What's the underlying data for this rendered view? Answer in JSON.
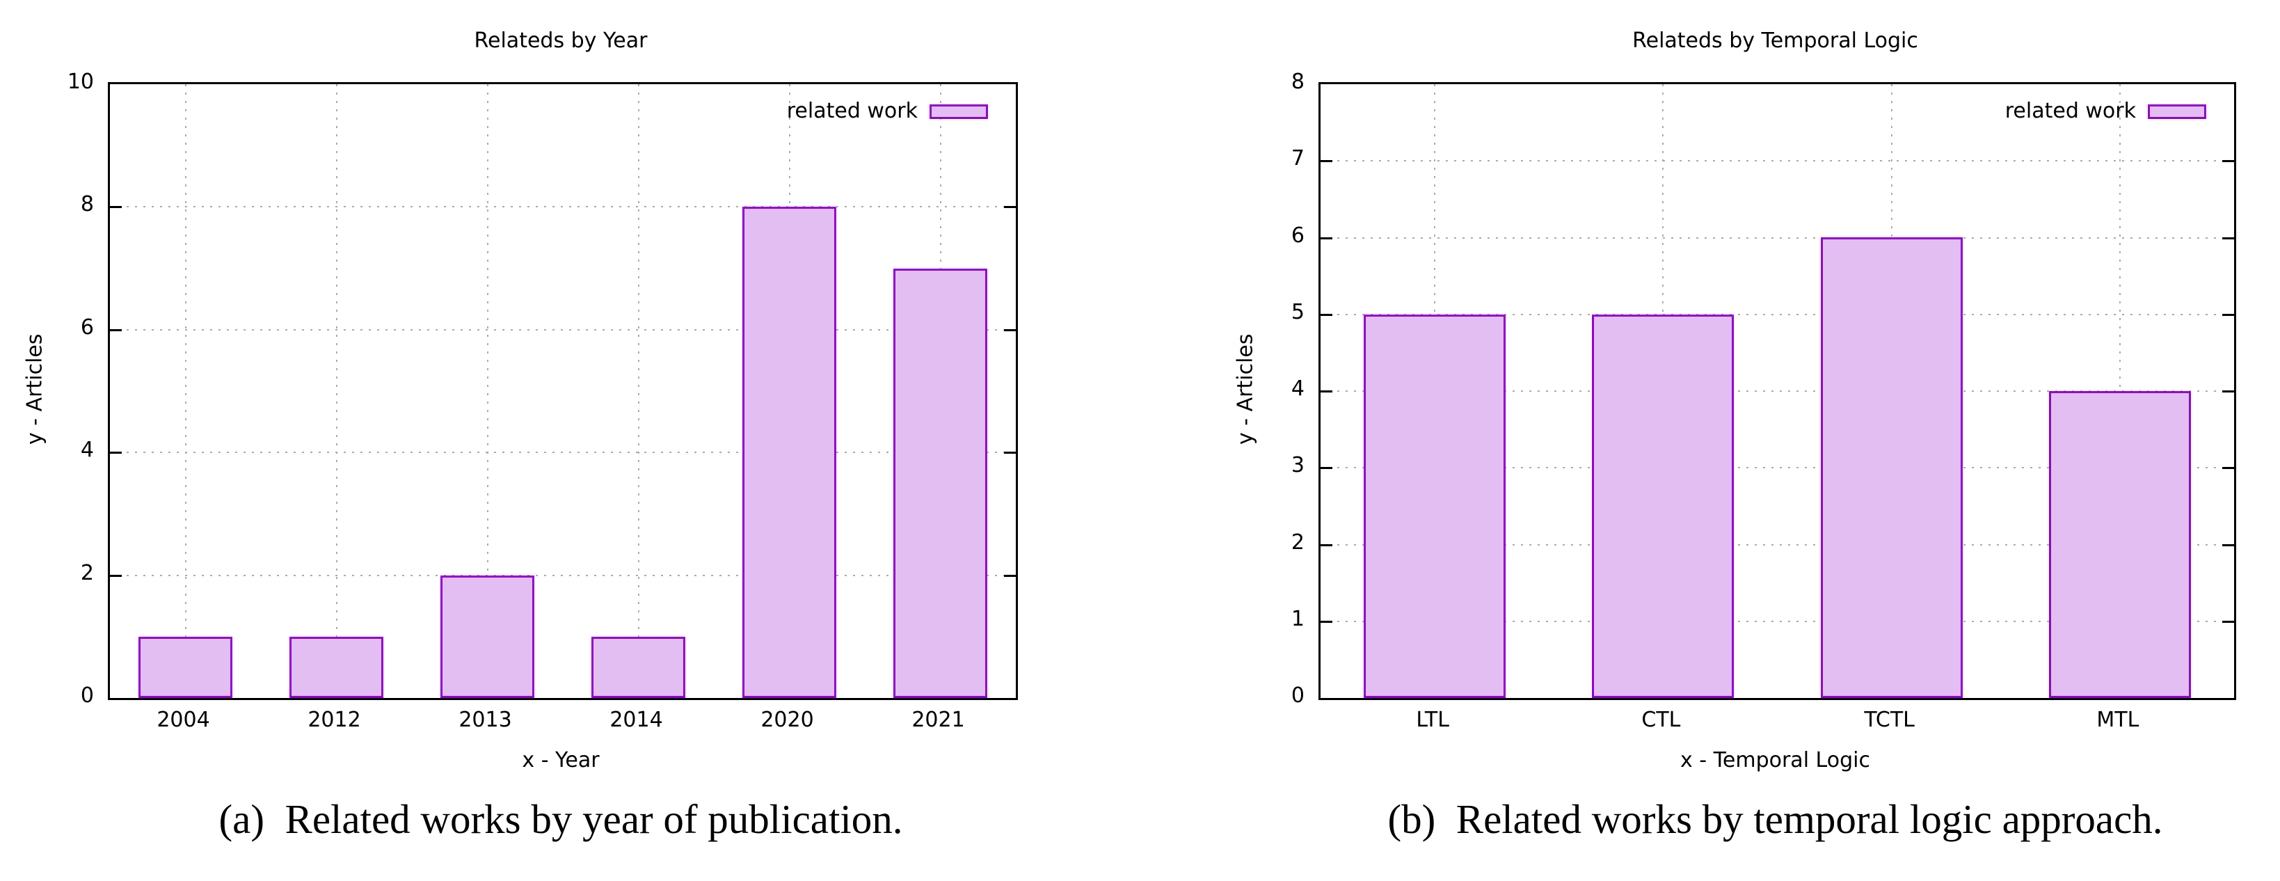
{
  "captions": {
    "a": "(a)  Related works by year of publication.",
    "b": "(b)  Related works by temporal logic approach."
  },
  "colors": {
    "bar_fill": "#e3bef2",
    "bar_border": "#9400d3",
    "grid": "#ababab",
    "axis": "#000000"
  },
  "chart_data": [
    {
      "type": "bar",
      "title": "Relateds by Year",
      "categories": [
        "2004",
        "2012",
        "2013",
        "2014",
        "2020",
        "2021"
      ],
      "values": [
        1,
        1,
        2,
        1,
        8,
        7
      ],
      "series_label": "related work",
      "xlabel": "x - Year",
      "ylabel": "y - Articles",
      "ylim": [
        0,
        10
      ],
      "yticks": [
        0,
        2,
        4,
        6,
        8,
        10
      ],
      "grid": true,
      "legend_position": "top-right",
      "bar_fill": "#e3bef2",
      "bar_border": "#9400d3"
    },
    {
      "type": "bar",
      "title": "Relateds by Temporal Logic",
      "categories": [
        "LTL",
        "CTL",
        "TCTL",
        "MTL"
      ],
      "values": [
        5,
        5,
        6,
        4
      ],
      "series_label": "related work",
      "xlabel": "x - Temporal Logic",
      "ylabel": "y - Articles",
      "ylim": [
        0,
        8
      ],
      "yticks": [
        0,
        1,
        2,
        3,
        4,
        5,
        6,
        7,
        8
      ],
      "grid": true,
      "legend_position": "top-right",
      "bar_fill": "#e3bef2",
      "bar_border": "#9400d3"
    }
  ]
}
